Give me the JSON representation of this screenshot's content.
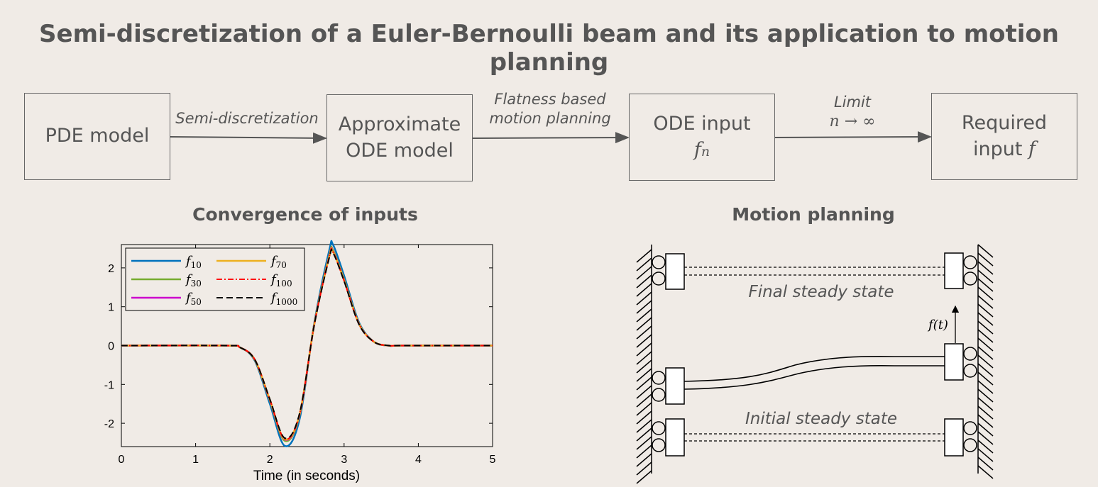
{
  "title": "Semi-discretization of a Euler-Bernoulli beam and its application to motion planning",
  "flow": {
    "box_pde": "PDE model",
    "box_ode_line1": "Approximate",
    "box_ode_line2": "ODE model",
    "box_input_line1": "ODE input",
    "box_input_var": "f",
    "box_input_sub": "n",
    "box_req_line1": "Required",
    "box_req_line2": "input",
    "box_req_var": "f",
    "edge1": "Semi-discretization",
    "edge2_line1": "Flatness based",
    "edge2_line2": "motion planning",
    "edge3_line1": "Limit",
    "edge3_line2": "n → ∞"
  },
  "sections": {
    "convergence": "Convergence of inputs",
    "motion": "Motion planning"
  },
  "chart_data": {
    "type": "line",
    "xlabel": "Time (in seconds)",
    "ylabel": "",
    "xlim": [
      0,
      5
    ],
    "ylim": [
      -2.6,
      2.6
    ],
    "xticks": [
      "0",
      "1",
      "2",
      "3",
      "4",
      "5"
    ],
    "yticks": [
      "2",
      "1",
      "0",
      "-1",
      "-2"
    ],
    "legend_position": "top-left",
    "series": [
      {
        "name": "f_10",
        "label_var": "f",
        "label_sub": "10",
        "color": "#0072bd",
        "style": "solid",
        "x": [
          0,
          1.4,
          1.6,
          1.8,
          2.0,
          2.2,
          2.4,
          2.6,
          2.8,
          2.85,
          3.0,
          3.2,
          3.4,
          3.6,
          3.8,
          5
        ],
        "y": [
          0,
          0,
          -0.05,
          -0.4,
          -1.5,
          -2.58,
          -1.9,
          0.6,
          2.45,
          2.6,
          1.8,
          0.6,
          0.1,
          0,
          0,
          0
        ]
      },
      {
        "name": "f_30",
        "label_var": "f",
        "label_sub": "30",
        "color": "#77ac30",
        "style": "solid",
        "x": [
          0,
          1.4,
          1.6,
          1.8,
          2.0,
          2.2,
          2.4,
          2.6,
          2.8,
          2.85,
          3.0,
          3.2,
          3.4,
          3.6,
          3.8,
          5
        ],
        "y": [
          0,
          0,
          -0.05,
          -0.38,
          -1.42,
          -2.45,
          -1.8,
          0.57,
          2.32,
          2.46,
          1.7,
          0.57,
          0.1,
          0,
          0,
          0
        ]
      },
      {
        "name": "f_50",
        "label_var": "f",
        "label_sub": "50",
        "color": "#cc00cc",
        "style": "solid",
        "x": [
          0,
          1.4,
          1.6,
          1.8,
          2.0,
          2.2,
          2.4,
          2.6,
          2.8,
          2.85,
          3.0,
          3.2,
          3.4,
          3.6,
          3.8,
          5
        ],
        "y": [
          0,
          0,
          -0.05,
          -0.37,
          -1.4,
          -2.42,
          -1.78,
          0.56,
          2.3,
          2.43,
          1.68,
          0.56,
          0.1,
          0,
          0,
          0
        ]
      },
      {
        "name": "f_70",
        "label_var": "f",
        "label_sub": "70",
        "color": "#edb120",
        "style": "solid",
        "x": [
          0,
          1.4,
          1.6,
          1.8,
          2.0,
          2.2,
          2.4,
          2.6,
          2.8,
          2.85,
          3.0,
          3.2,
          3.4,
          3.6,
          3.8,
          5
        ],
        "y": [
          0,
          0,
          -0.05,
          -0.37,
          -1.39,
          -2.41,
          -1.77,
          0.56,
          2.29,
          2.42,
          1.68,
          0.56,
          0.1,
          0,
          0,
          0
        ]
      },
      {
        "name": "f_100",
        "label_var": "f",
        "label_sub": "100",
        "color": "#ff0000",
        "style": "dashdot",
        "x": [
          0,
          1.4,
          1.6,
          1.8,
          2.0,
          2.2,
          2.4,
          2.6,
          2.8,
          2.85,
          3.0,
          3.2,
          3.4,
          3.6,
          3.8,
          5
        ],
        "y": [
          0,
          0,
          -0.05,
          -0.37,
          -1.39,
          -2.4,
          -1.77,
          0.56,
          2.28,
          2.41,
          1.67,
          0.56,
          0.1,
          0,
          0,
          0
        ]
      },
      {
        "name": "f_1000",
        "label_var": "f",
        "label_sub": "1000",
        "color": "#000000",
        "style": "dashed",
        "x": [
          0,
          1.4,
          1.6,
          1.8,
          2.0,
          2.2,
          2.4,
          2.6,
          2.8,
          2.85,
          3.0,
          3.2,
          3.4,
          3.6,
          3.8,
          5
        ],
        "y": [
          0,
          0,
          -0.05,
          -0.37,
          -1.38,
          -2.38,
          -1.75,
          0.55,
          2.26,
          2.39,
          1.66,
          0.55,
          0.1,
          0,
          0,
          0
        ]
      }
    ]
  },
  "motion_diagram": {
    "final_label": "Final steady state",
    "initial_label": "Initial steady state",
    "force_label": "f(t)"
  },
  "colors": {
    "background": "#f0ebe6",
    "text": "#555555",
    "box_border": "#666666"
  }
}
